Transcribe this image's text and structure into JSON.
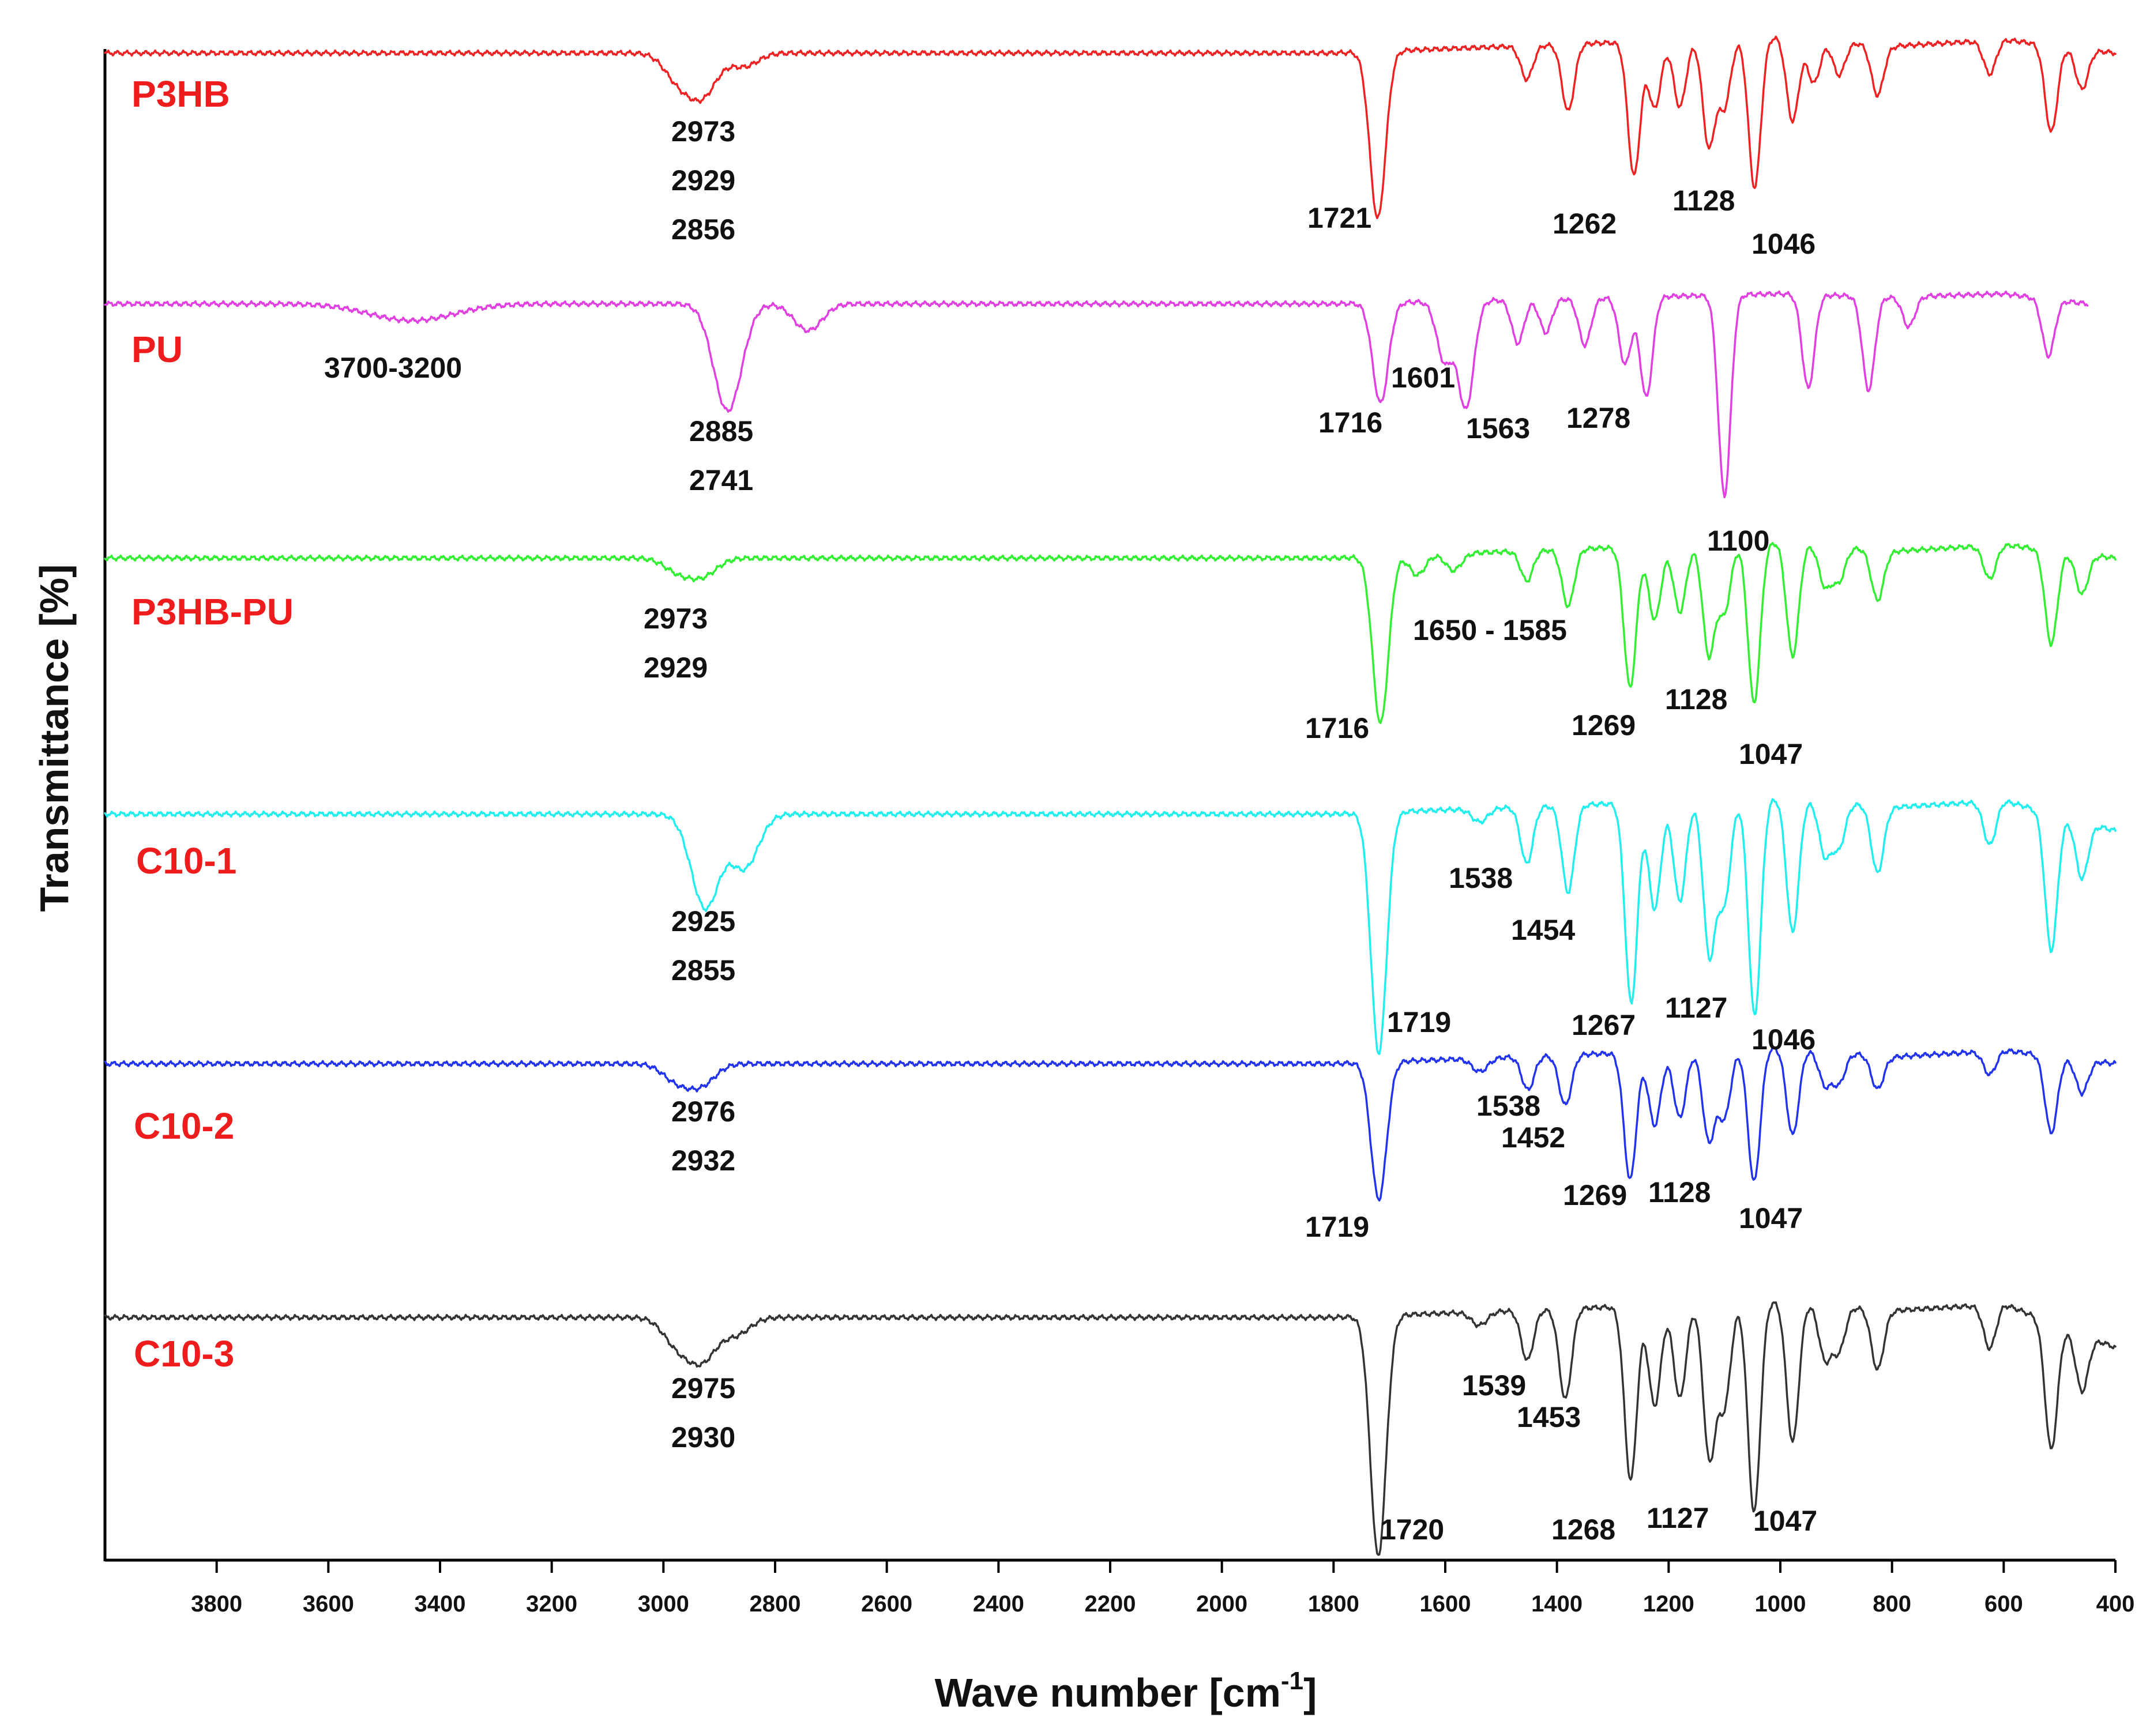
{
  "chart_data": {
    "type": "line",
    "title": "",
    "xlabel": "Wave number [cm",
    "xlabel_superscript": "-1",
    "xlabel_close": "]",
    "ylabel": "Transmittance [%]",
    "xlim": [
      4000,
      400
    ],
    "x_reversed": true,
    "grid": false,
    "x_ticks": [
      3800,
      3600,
      3400,
      3200,
      3000,
      2800,
      2600,
      2400,
      2200,
      2000,
      1800,
      1600,
      1400,
      1200,
      1000,
      800,
      600,
      400
    ],
    "series": [
      {
        "name": "P3HB",
        "color": "#ee2222",
        "baseline_x": [
          4000,
          3000,
          1800,
          1000,
          800,
          600,
          400
        ],
        "baseline_y": [
          0,
          0,
          0,
          0.5,
          0.2,
          0.4,
          0
        ],
        "peaks": [
          {
            "x": 2973,
            "depth": 0.8
          },
          {
            "x": 2929,
            "depth": 1.2
          },
          {
            "x": 2856,
            "depth": 0.4
          },
          {
            "x": 1721,
            "depth": 5.0
          },
          {
            "x": 1454,
            "depth": 1.0
          },
          {
            "x": 1380,
            "depth": 2.0
          },
          {
            "x": 1262,
            "depth": 4.0
          },
          {
            "x": 1225,
            "depth": 2.0
          },
          {
            "x": 1180,
            "depth": 2.0
          },
          {
            "x": 1128,
            "depth": 3.2
          },
          {
            "x": 1100,
            "depth": 2.0
          },
          {
            "x": 1046,
            "depth": 4.5
          },
          {
            "x": 978,
            "depth": 2.5
          },
          {
            "x": 940,
            "depth": 1.3
          },
          {
            "x": 895,
            "depth": 1.0
          },
          {
            "x": 826,
            "depth": 1.5
          },
          {
            "x": 625,
            "depth": 1.0
          },
          {
            "x": 515,
            "depth": 2.6
          },
          {
            "x": 460,
            "depth": 1.2
          }
        ],
        "peak_labels": [
          "2973",
          "2929",
          "2856",
          "1721",
          "1262",
          "1128",
          "1046"
        ]
      },
      {
        "name": "PU",
        "color": "#e040e0",
        "baseline_x": [
          4000,
          3000,
          1800,
          1000,
          800,
          600,
          450
        ],
        "baseline_y": [
          0,
          0,
          0,
          0.3,
          0.2,
          0.3,
          0
        ],
        "peaks": [
          {
            "x": 3450,
            "depth": 0.5
          },
          {
            "x": 2885,
            "depth": 3.2
          },
          {
            "x": 2741,
            "depth": 0.8
          },
          {
            "x": 1716,
            "depth": 3.0
          },
          {
            "x": 1601,
            "depth": 1.8
          },
          {
            "x": 1563,
            "depth": 3.2
          },
          {
            "x": 1470,
            "depth": 1.3
          },
          {
            "x": 1420,
            "depth": 1.0
          },
          {
            "x": 1350,
            "depth": 1.4
          },
          {
            "x": 1278,
            "depth": 2.0
          },
          {
            "x": 1240,
            "depth": 3.0
          },
          {
            "x": 1100,
            "depth": 6.0
          },
          {
            "x": 950,
            "depth": 2.8
          },
          {
            "x": 842,
            "depth": 2.8
          },
          {
            "x": 770,
            "depth": 0.9
          },
          {
            "x": 520,
            "depth": 1.7
          }
        ],
        "peak_labels": [
          "3700-3200",
          "2885",
          "2741",
          "1716",
          "1601",
          "1563",
          "1278",
          "1100"
        ]
      },
      {
        "name": "P3HB-PU",
        "color": "#33ee33",
        "baseline_x": [
          4000,
          3000,
          1800,
          1000,
          800,
          600,
          400
        ],
        "baseline_y": [
          0,
          0,
          0,
          0.5,
          0.2,
          0.4,
          0
        ],
        "peaks": [
          {
            "x": 2973,
            "depth": 0.4
          },
          {
            "x": 2929,
            "depth": 0.5
          },
          {
            "x": 1716,
            "depth": 5.0
          },
          {
            "x": 1650,
            "depth": 0.6
          },
          {
            "x": 1585,
            "depth": 0.5
          },
          {
            "x": 1454,
            "depth": 0.9
          },
          {
            "x": 1380,
            "depth": 1.7
          },
          {
            "x": 1269,
            "depth": 4.2
          },
          {
            "x": 1225,
            "depth": 2.2
          },
          {
            "x": 1180,
            "depth": 2.0
          },
          {
            "x": 1128,
            "depth": 3.3
          },
          {
            "x": 1100,
            "depth": 2.0
          },
          {
            "x": 1047,
            "depth": 4.8
          },
          {
            "x": 978,
            "depth": 3.4
          },
          {
            "x": 920,
            "depth": 1.2
          },
          {
            "x": 895,
            "depth": 1.0
          },
          {
            "x": 826,
            "depth": 1.5
          },
          {
            "x": 625,
            "depth": 1.0
          },
          {
            "x": 515,
            "depth": 2.8
          },
          {
            "x": 460,
            "depth": 1.2
          }
        ],
        "peak_labels": [
          "2973",
          "2929",
          "1650 - 1585",
          "1716",
          "1269",
          "1128",
          "1047"
        ]
      },
      {
        "name": "C10-1",
        "color": "#22eeee",
        "baseline_x": [
          4000,
          3000,
          1800,
          1000,
          800,
          600,
          400
        ],
        "baseline_y": [
          0,
          0,
          0,
          0.5,
          0.2,
          0.4,
          -0.5
        ],
        "peaks": [
          {
            "x": 2925,
            "depth": 2.8
          },
          {
            "x": 2855,
            "depth": 1.6
          },
          {
            "x": 1719,
            "depth": 7.2
          },
          {
            "x": 1538,
            "depth": 0.4
          },
          {
            "x": 1454,
            "depth": 1.7
          },
          {
            "x": 1380,
            "depth": 2.6
          },
          {
            "x": 1267,
            "depth": 6.0
          },
          {
            "x": 1225,
            "depth": 3.2
          },
          {
            "x": 1180,
            "depth": 3.0
          },
          {
            "x": 1127,
            "depth": 4.6
          },
          {
            "x": 1100,
            "depth": 3.0
          },
          {
            "x": 1046,
            "depth": 6.5
          },
          {
            "x": 978,
            "depth": 4.0
          },
          {
            "x": 920,
            "depth": 1.6
          },
          {
            "x": 895,
            "depth": 1.3
          },
          {
            "x": 826,
            "depth": 2.0
          },
          {
            "x": 625,
            "depth": 1.3
          },
          {
            "x": 515,
            "depth": 4.1
          },
          {
            "x": 460,
            "depth": 1.7
          }
        ],
        "peak_labels": [
          "2925",
          "2855",
          "1538",
          "1454",
          "1719",
          "1267",
          "1127",
          "1046"
        ]
      },
      {
        "name": "C10-2",
        "color": "#2233ee",
        "baseline_x": [
          4000,
          3000,
          1800,
          1000,
          800,
          600,
          400
        ],
        "baseline_y": [
          0,
          0,
          0,
          0.5,
          0.2,
          0.4,
          0
        ],
        "peaks": [
          {
            "x": 2976,
            "depth": 0.5
          },
          {
            "x": 2932,
            "depth": 0.6
          },
          {
            "x": 1719,
            "depth": 4.1
          },
          {
            "x": 1538,
            "depth": 0.4
          },
          {
            "x": 1452,
            "depth": 1.0
          },
          {
            "x": 1385,
            "depth": 1.5
          },
          {
            "x": 1269,
            "depth": 3.8
          },
          {
            "x": 1225,
            "depth": 2.2
          },
          {
            "x": 1180,
            "depth": 2.0
          },
          {
            "x": 1128,
            "depth": 2.7
          },
          {
            "x": 1100,
            "depth": 2.0
          },
          {
            "x": 1047,
            "depth": 4.0
          },
          {
            "x": 978,
            "depth": 2.6
          },
          {
            "x": 920,
            "depth": 1.0
          },
          {
            "x": 895,
            "depth": 0.9
          },
          {
            "x": 826,
            "depth": 1.0
          },
          {
            "x": 625,
            "depth": 0.7
          },
          {
            "x": 515,
            "depth": 2.3
          },
          {
            "x": 460,
            "depth": 1.0
          }
        ],
        "peak_labels": [
          "2976",
          "2932",
          "1538",
          "1452",
          "1719",
          "1269",
          "1128",
          "1047"
        ]
      },
      {
        "name": "C10-3",
        "color": "#333333",
        "baseline_x": [
          4000,
          3000,
          1800,
          1000,
          800,
          600,
          400
        ],
        "baseline_y": [
          0,
          0,
          0,
          0.5,
          0.2,
          0.4,
          -0.9
        ],
        "peaks": [
          {
            "x": 2975,
            "depth": 0.8
          },
          {
            "x": 2930,
            "depth": 1.2
          },
          {
            "x": 2870,
            "depth": 0.5
          },
          {
            "x": 1720,
            "depth": 7.2
          },
          {
            "x": 1539,
            "depth": 0.4
          },
          {
            "x": 1453,
            "depth": 1.5
          },
          {
            "x": 1385,
            "depth": 2.7
          },
          {
            "x": 1268,
            "depth": 5.2
          },
          {
            "x": 1225,
            "depth": 3.0
          },
          {
            "x": 1180,
            "depth": 2.8
          },
          {
            "x": 1127,
            "depth": 4.6
          },
          {
            "x": 1100,
            "depth": 3.0
          },
          {
            "x": 1047,
            "depth": 6.3
          },
          {
            "x": 978,
            "depth": 4.2
          },
          {
            "x": 920,
            "depth": 1.6
          },
          {
            "x": 895,
            "depth": 1.3
          },
          {
            "x": 826,
            "depth": 1.8
          },
          {
            "x": 625,
            "depth": 1.3
          },
          {
            "x": 515,
            "depth": 3.8
          },
          {
            "x": 460,
            "depth": 1.7
          }
        ],
        "peak_labels": [
          "2975",
          "2930",
          "1539",
          "1453",
          "1720",
          "1268",
          "1127",
          "1047"
        ]
      }
    ]
  }
}
